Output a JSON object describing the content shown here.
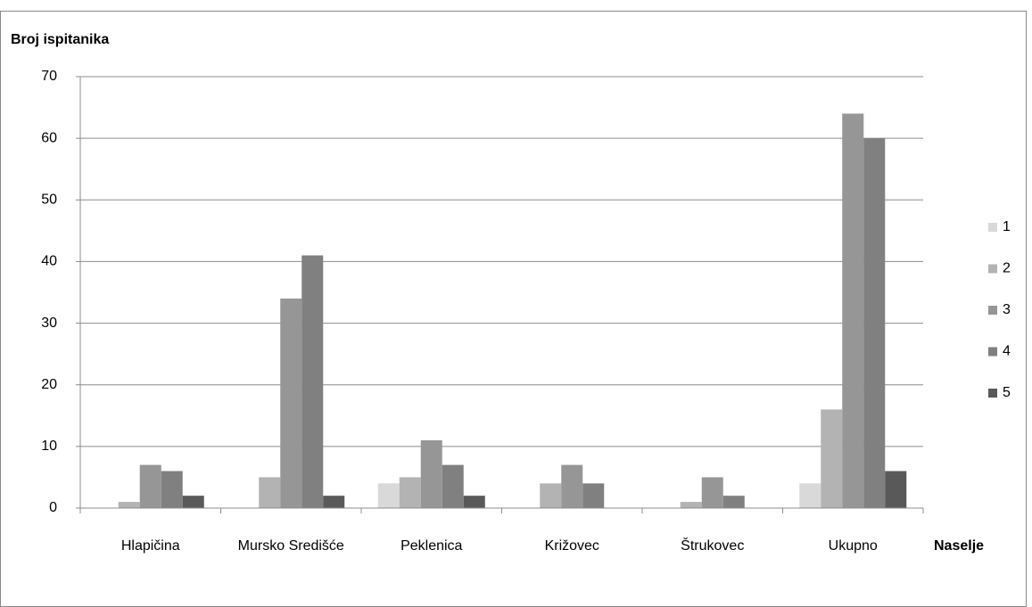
{
  "chart_data": {
    "type": "bar",
    "title": "Broj ispitanika",
    "x_label": "Naselje",
    "categories": [
      "Hlapičina",
      "Mursko Središće",
      "Peklenica",
      "Križovec",
      "Štrukovec",
      "Ukupno"
    ],
    "series": [
      {
        "name": "1",
        "color": "#d9d9d9",
        "values": [
          0,
          0,
          4,
          0,
          0,
          4
        ]
      },
      {
        "name": "2",
        "color": "#b3b3b3",
        "values": [
          1,
          5,
          5,
          4,
          1,
          16
        ]
      },
      {
        "name": "3",
        "color": "#969696",
        "values": [
          7,
          34,
          11,
          7,
          5,
          64
        ]
      },
      {
        "name": "4",
        "color": "#808080",
        "values": [
          6,
          41,
          7,
          4,
          2,
          60
        ]
      },
      {
        "name": "5",
        "color": "#595959",
        "values": [
          2,
          2,
          2,
          0,
          0,
          6
        ]
      }
    ],
    "ylim": [
      0,
      70
    ],
    "yticks": [
      0,
      10,
      20,
      30,
      40,
      50,
      60,
      70
    ],
    "grid": true,
    "legend": "right"
  }
}
